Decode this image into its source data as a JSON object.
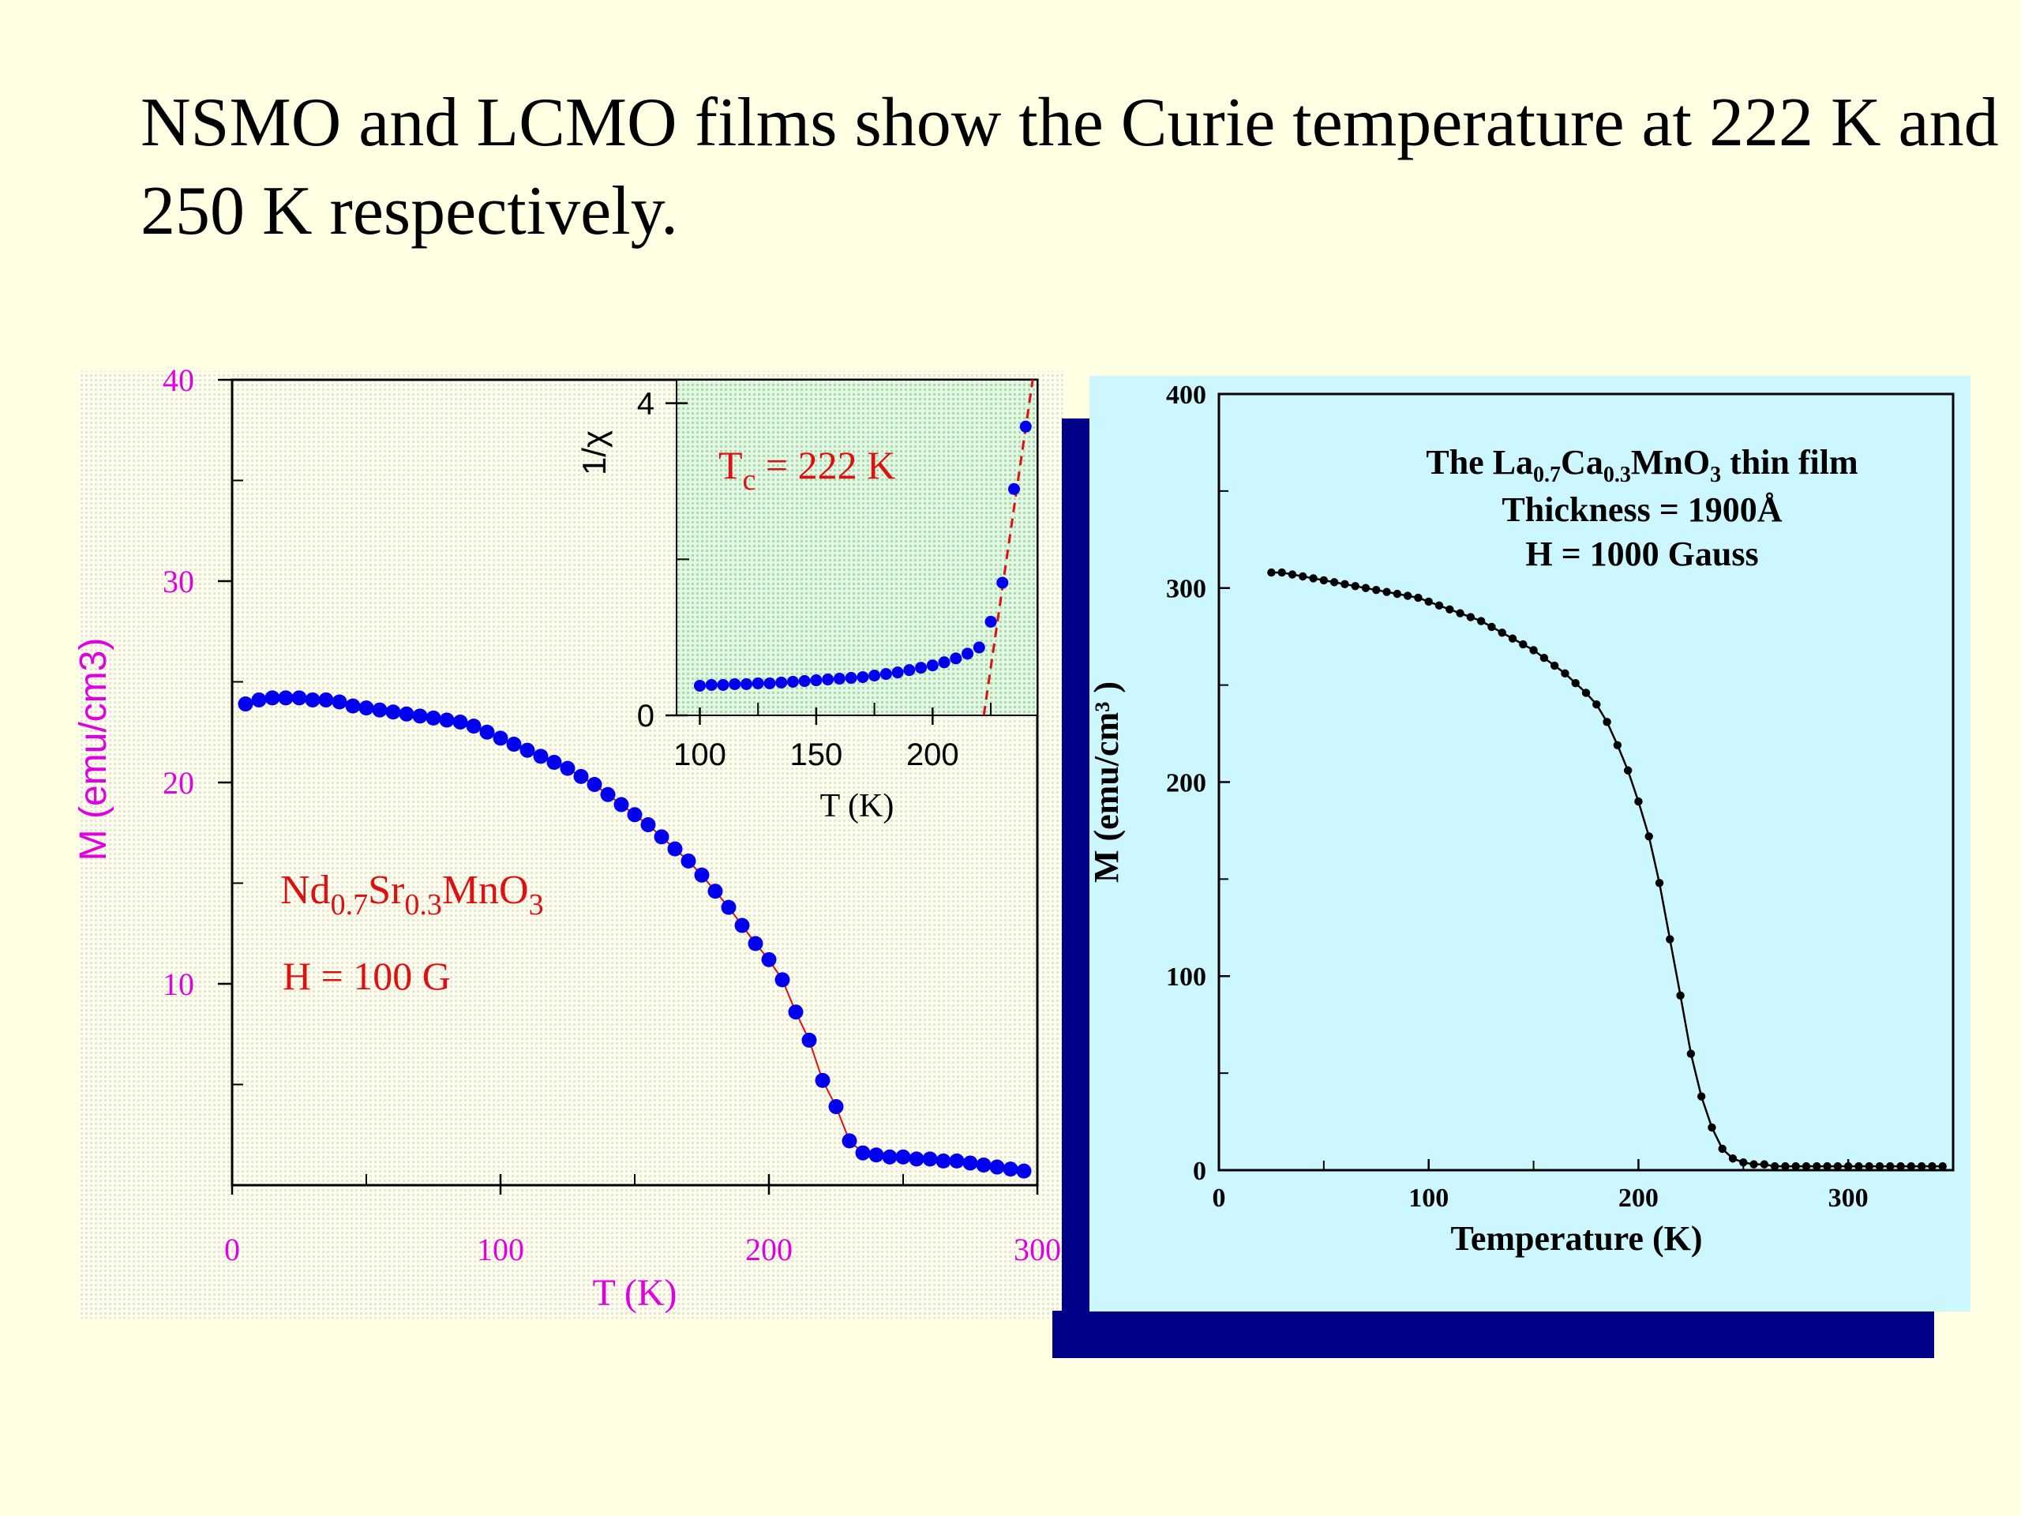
{
  "slide": {
    "title": "NSMO and LCMO films show the Curie temperature at 222 K and 250 K respectively."
  },
  "colors": {
    "background": "#ffffe4",
    "magenta": "#e000e0",
    "red": "#dd1111",
    "blue": "#0000ee",
    "navy": "#000088",
    "cyan_panel": "#ccf7ff",
    "inset_green": "#c8ecc8"
  },
  "chart_data": [
    {
      "id": "nsmo-main",
      "type": "scatter",
      "xlabel": "T (K)",
      "ylabel": "M (emu/cm3)",
      "xlim": [
        0,
        300
      ],
      "ylim": [
        0,
        40
      ],
      "x_ticks": [
        "0",
        "100",
        "200",
        "300"
      ],
      "y_ticks": [
        "10",
        "20",
        "30",
        "40"
      ],
      "annotations": [
        "Nd0.7Sr0.3MnO3",
        "H = 100 G"
      ],
      "series": [
        {
          "color": "#0000ee",
          "line_color": "#dd1111",
          "x": [
            5,
            10,
            15,
            20,
            25,
            30,
            35,
            40,
            45,
            50,
            55,
            60,
            65,
            70,
            75,
            80,
            85,
            90,
            95,
            100,
            105,
            110,
            115,
            120,
            125,
            130,
            135,
            140,
            145,
            150,
            155,
            160,
            165,
            170,
            175,
            180,
            185,
            190,
            195,
            200,
            205,
            210,
            215,
            220,
            225,
            230,
            235,
            240,
            245,
            250,
            255,
            260,
            265,
            270,
            275,
            280,
            285,
            290,
            295
          ],
          "y": [
            23.9,
            24.1,
            24.2,
            24.2,
            24.2,
            24.1,
            24.1,
            24.0,
            23.8,
            23.7,
            23.6,
            23.5,
            23.4,
            23.3,
            23.2,
            23.1,
            23.0,
            22.8,
            22.5,
            22.2,
            21.9,
            21.6,
            21.3,
            21.0,
            20.7,
            20.3,
            19.9,
            19.4,
            18.9,
            18.4,
            17.9,
            17.3,
            16.7,
            16.1,
            15.4,
            14.6,
            13.8,
            12.9,
            12.0,
            11.2,
            10.2,
            8.6,
            7.2,
            5.2,
            3.9,
            2.2,
            1.6,
            1.5,
            1.4,
            1.4,
            1.3,
            1.3,
            1.2,
            1.2,
            1.1,
            1.0,
            0.9,
            0.8,
            0.7
          ]
        }
      ]
    },
    {
      "id": "nsmo-inset",
      "type": "scatter",
      "xlabel": "T (K)",
      "ylabel": "1/χ",
      "xlim": [
        90,
        245
      ],
      "ylim": [
        0,
        4.3
      ],
      "x_ticks": [
        "100",
        "150",
        "200"
      ],
      "y_ticks": [
        "0",
        "4"
      ],
      "annotation": "Tc = 222 K",
      "fit_line": {
        "x": [
          222,
          243
        ],
        "y": [
          0,
          4.3
        ]
      },
      "series": [
        {
          "color": "#0000ee",
          "x": [
            100,
            105,
            110,
            115,
            120,
            125,
            130,
            135,
            140,
            145,
            150,
            155,
            160,
            165,
            170,
            175,
            180,
            185,
            190,
            195,
            200,
            205,
            210,
            215,
            220,
            225,
            230,
            235,
            240
          ],
          "y": [
            0.38,
            0.39,
            0.39,
            0.4,
            0.4,
            0.41,
            0.41,
            0.42,
            0.43,
            0.44,
            0.45,
            0.46,
            0.47,
            0.48,
            0.49,
            0.51,
            0.53,
            0.55,
            0.58,
            0.61,
            0.64,
            0.68,
            0.73,
            0.79,
            0.87,
            1.2,
            1.7,
            2.9,
            3.7
          ]
        }
      ]
    },
    {
      "id": "lcmo",
      "type": "line",
      "xlabel": "Temperature (K)",
      "ylabel": "M (emu/cm³ )",
      "xlim": [
        0,
        350
      ],
      "ylim": [
        0,
        400
      ],
      "x_ticks": [
        "0",
        "100",
        "200",
        "300"
      ],
      "y_ticks": [
        "0",
        "100",
        "200",
        "300",
        "400"
      ],
      "annotation_lines": [
        "The La0.7Ca0.3MnO3 thin film",
        "Thickness = 1900Å",
        "H = 1000 Gauss"
      ],
      "series": [
        {
          "color": "#000000",
          "x": [
            25,
            30,
            35,
            40,
            45,
            50,
            55,
            60,
            65,
            70,
            75,
            80,
            85,
            90,
            95,
            100,
            105,
            110,
            115,
            120,
            125,
            130,
            135,
            140,
            145,
            150,
            155,
            160,
            165,
            170,
            175,
            180,
            185,
            190,
            195,
            200,
            205,
            210,
            215,
            220,
            225,
            230,
            235,
            240,
            245,
            250,
            255,
            260,
            265,
            270,
            275,
            280,
            285,
            290,
            295,
            300,
            305,
            310,
            315,
            320,
            325,
            330,
            335,
            340,
            345
          ],
          "y": [
            308,
            308,
            307,
            306,
            305,
            304,
            303,
            302,
            301,
            300,
            299,
            298,
            297,
            296,
            295,
            293,
            291,
            289,
            287,
            285,
            283,
            280,
            277,
            274,
            271,
            268,
            264,
            260,
            256,
            251,
            246,
            240,
            231,
            219,
            206,
            190,
            172,
            148,
            119,
            90,
            60,
            38,
            22,
            11,
            6,
            4,
            3,
            3,
            2,
            2,
            2,
            2,
            2,
            2,
            2,
            2,
            2,
            2,
            2,
            2,
            2,
            2,
            2,
            2,
            2
          ]
        }
      ]
    }
  ]
}
